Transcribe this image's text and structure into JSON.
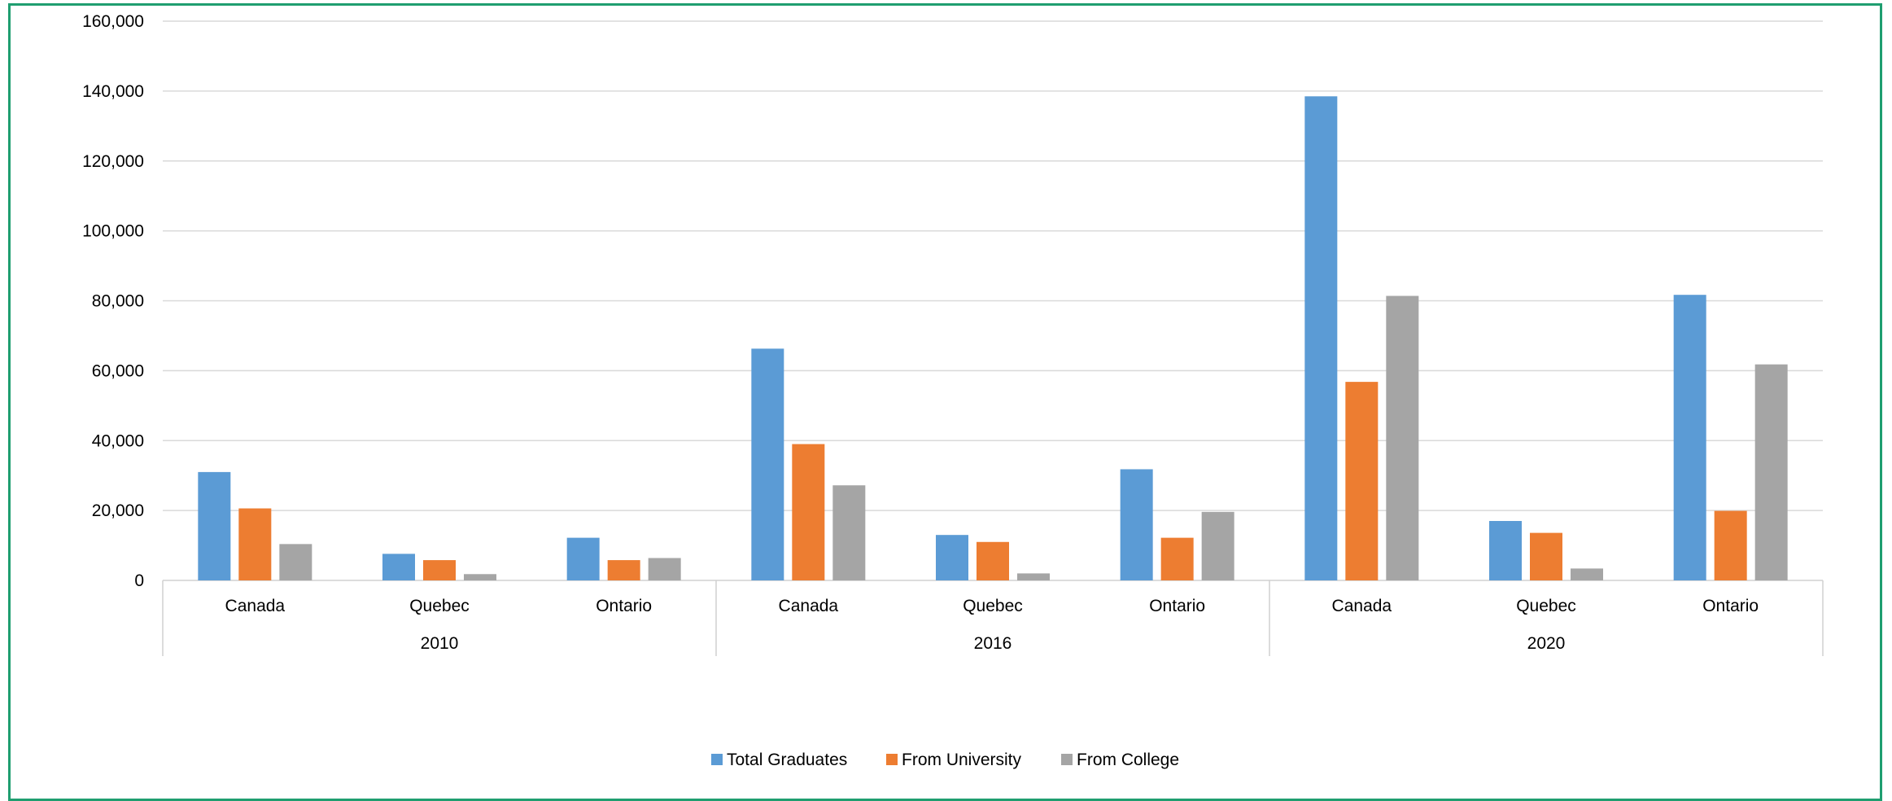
{
  "chart_data": {
    "type": "bar",
    "title": "",
    "xlabel": "",
    "ylabel": "",
    "ylim": [
      0,
      160000
    ],
    "yticks": [
      0,
      20000,
      40000,
      60000,
      80000,
      100000,
      120000,
      140000,
      160000
    ],
    "ytick_labels": [
      "0",
      "20,000",
      "40,000",
      "60,000",
      "80,000",
      "100,000",
      "120,000",
      "140,000",
      "160,000"
    ],
    "grid": true,
    "legend_position": "bottom",
    "groups": [
      {
        "label": "2010",
        "categories": [
          "Canada",
          "Quebec",
          "Ontario"
        ]
      },
      {
        "label": "2016",
        "categories": [
          "Canada",
          "Quebec",
          "Ontario"
        ]
      },
      {
        "label": "2020",
        "categories": [
          "Canada",
          "Quebec",
          "Ontario"
        ]
      }
    ],
    "series": [
      {
        "name": "Total Graduates",
        "color": "#5b9bd5",
        "values": [
          31000,
          7600,
          12200,
          66300,
          13000,
          31800,
          138500,
          17000,
          81700
        ]
      },
      {
        "name": "From University",
        "color": "#ed7d31",
        "values": [
          20600,
          5800,
          5800,
          39000,
          11000,
          12200,
          56800,
          13600,
          19900
        ]
      },
      {
        "name": "From College",
        "color": "#a5a5a5",
        "values": [
          10400,
          1800,
          6400,
          27200,
          2000,
          19600,
          81400,
          3400,
          61800
        ]
      }
    ]
  }
}
